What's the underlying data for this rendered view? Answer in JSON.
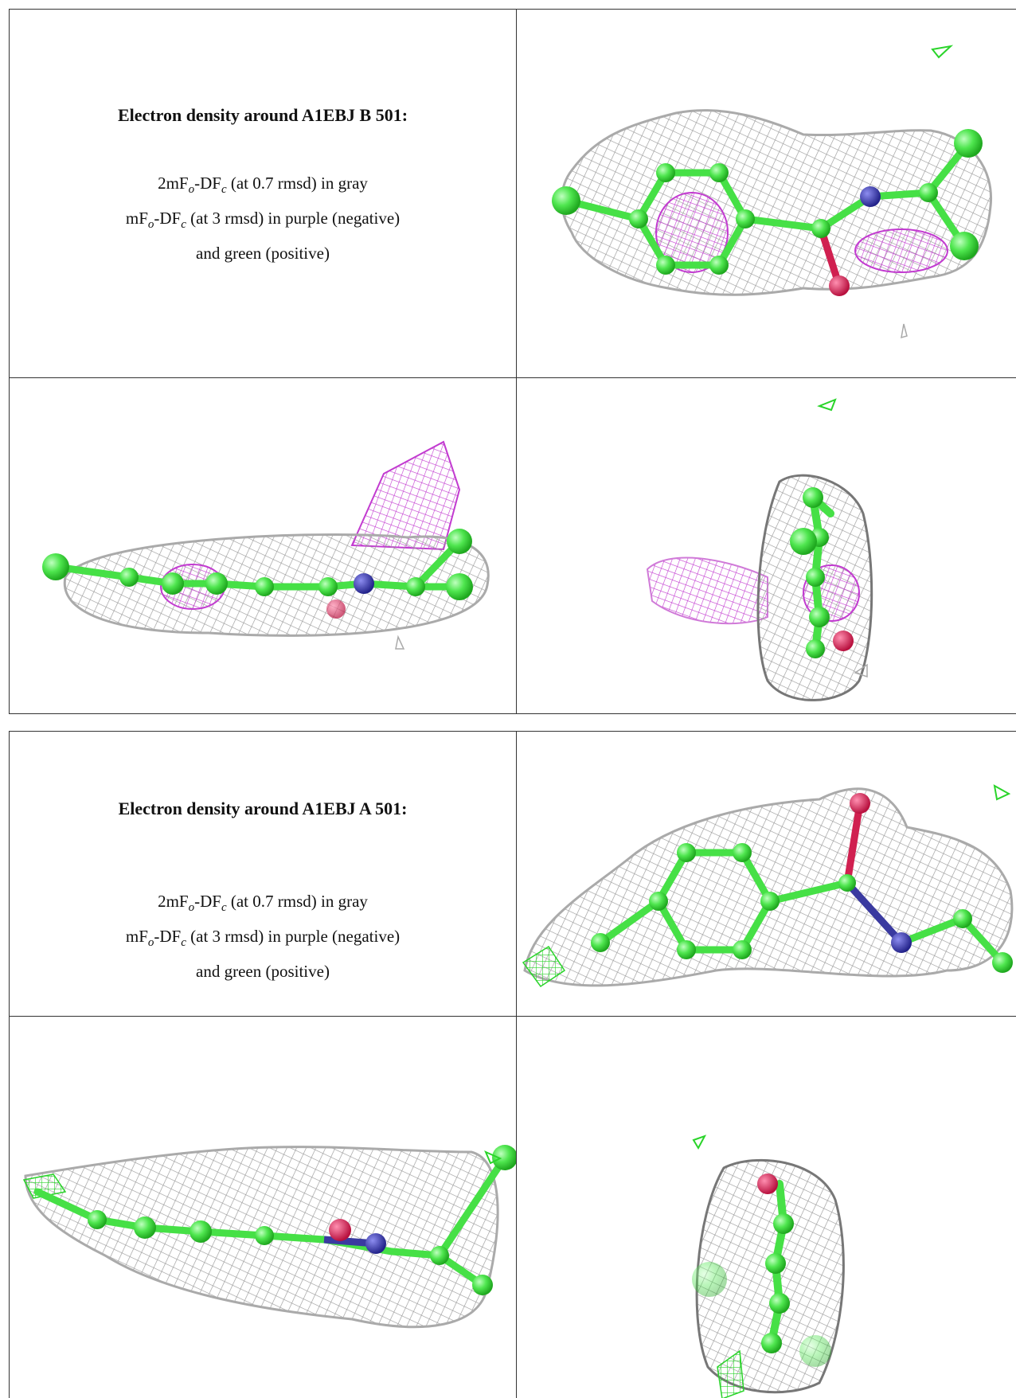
{
  "panels": [
    {
      "title": "Electron density around A1EBJ B 501:",
      "legend": [
        {
          "parts": [
            "2mF",
            "o",
            "-DF",
            "c",
            " (at 0.7 rmsd) in gray"
          ]
        },
        {
          "parts": [
            "mF",
            "o",
            "-DF",
            "c",
            " (at 3 rmsd) in purple (negative)"
          ]
        },
        {
          "parts": [
            "and green (positive)"
          ]
        }
      ]
    },
    {
      "title": "Electron density around A1EBJ A 501:",
      "legend": [
        {
          "parts": [
            "2mF",
            "o",
            "-DF",
            "c",
            " (at 0.7 rmsd) in gray"
          ]
        },
        {
          "parts": [
            "mF",
            "o",
            "-DF",
            "c",
            " (at 3 rmsd) in purple (negative)"
          ]
        },
        {
          "parts": [
            "and green (positive)"
          ]
        }
      ]
    }
  ]
}
